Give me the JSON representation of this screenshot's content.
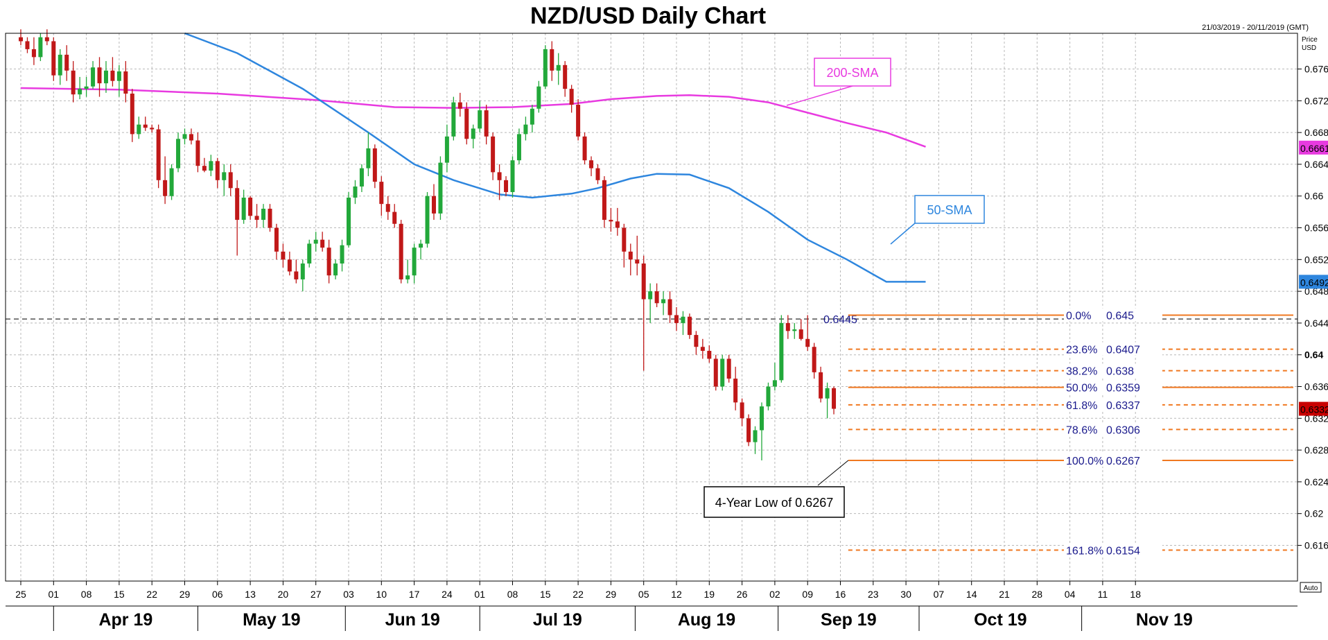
{
  "header": {
    "title": "NZD/USD Daily Chart",
    "date_range": "21/03/2019 - 20/11/2019 (GMT)",
    "price_unit_line1": "Price",
    "price_unit_line2": "USD",
    "auto_label": "Auto"
  },
  "colors": {
    "bull": "#22a83a",
    "bear": "#c01818",
    "sma200": "#e83ae0",
    "sma50": "#2e86de",
    "fib": "#f07820",
    "price_badge": "#c80000",
    "grid": "#b8b8b8"
  },
  "chart_data": {
    "type": "candlestick",
    "title": "NZD/USD Daily Chart",
    "ylabel": "Price USD",
    "ylim": [
      0.6115,
      0.6805
    ],
    "grid": true,
    "price_ticks": [
      "0.676",
      "0.672",
      "0.668",
      "0.664",
      "0.66",
      "0.656",
      "0.652",
      "0.648",
      "0.644",
      "0.64",
      "0.636",
      "0.632",
      "0.628",
      "0.624",
      "0.62",
      "0.616"
    ],
    "x_tick_labels": [
      "25",
      "01",
      "08",
      "15",
      "22",
      "29",
      "06",
      "13",
      "20",
      "27",
      "03",
      "10",
      "17",
      "24",
      "01",
      "08",
      "15",
      "22",
      "29",
      "05",
      "12",
      "19",
      "26",
      "02",
      "09",
      "16",
      "23",
      "30",
      "07",
      "14",
      "21",
      "28",
      "04",
      "11",
      "18"
    ],
    "months": [
      "Apr 19",
      "May 19",
      "Jun 19",
      "Jul 19",
      "Aug 19",
      "Sep 19",
      "Oct 19",
      "Nov 19"
    ],
    "candles": [
      {
        "o": 0.68,
        "h": 0.681,
        "l": 0.679,
        "c": 0.6795
      },
      {
        "o": 0.6795,
        "h": 0.68,
        "l": 0.678,
        "c": 0.6785
      },
      {
        "o": 0.6785,
        "h": 0.68,
        "l": 0.6765,
        "c": 0.6775
      },
      {
        "o": 0.6775,
        "h": 0.6805,
        "l": 0.677,
        "c": 0.68
      },
      {
        "o": 0.68,
        "h": 0.681,
        "l": 0.679,
        "c": 0.6795
      },
      {
        "o": 0.6795,
        "h": 0.68,
        "l": 0.6745,
        "c": 0.6752
      },
      {
        "o": 0.6752,
        "h": 0.6785,
        "l": 0.674,
        "c": 0.6778
      },
      {
        "o": 0.6778,
        "h": 0.679,
        "l": 0.6745,
        "c": 0.6758
      },
      {
        "o": 0.6758,
        "h": 0.677,
        "l": 0.6718,
        "c": 0.6728
      },
      {
        "o": 0.6728,
        "h": 0.675,
        "l": 0.6722,
        "c": 0.6735
      },
      {
        "o": 0.6735,
        "h": 0.675,
        "l": 0.6725,
        "c": 0.6738
      },
      {
        "o": 0.6738,
        "h": 0.677,
        "l": 0.6735,
        "c": 0.6762
      },
      {
        "o": 0.6762,
        "h": 0.6775,
        "l": 0.6725,
        "c": 0.6742
      },
      {
        "o": 0.6742,
        "h": 0.677,
        "l": 0.673,
        "c": 0.6758
      },
      {
        "o": 0.6758,
        "h": 0.6775,
        "l": 0.6738,
        "c": 0.6745
      },
      {
        "o": 0.6745,
        "h": 0.6765,
        "l": 0.6725,
        "c": 0.6757
      },
      {
        "o": 0.6757,
        "h": 0.677,
        "l": 0.6718,
        "c": 0.6729
      },
      {
        "o": 0.6729,
        "h": 0.6735,
        "l": 0.6668,
        "c": 0.6678
      },
      {
        "o": 0.6678,
        "h": 0.67,
        "l": 0.6672,
        "c": 0.669
      },
      {
        "o": 0.669,
        "h": 0.67,
        "l": 0.6682,
        "c": 0.6686
      },
      {
        "o": 0.6686,
        "h": 0.669,
        "l": 0.668,
        "c": 0.6684
      },
      {
        "o": 0.6684,
        "h": 0.669,
        "l": 0.661,
        "c": 0.662
      },
      {
        "o": 0.662,
        "h": 0.665,
        "l": 0.659,
        "c": 0.66
      },
      {
        "o": 0.66,
        "h": 0.664,
        "l": 0.6595,
        "c": 0.6635
      },
      {
        "o": 0.6635,
        "h": 0.668,
        "l": 0.663,
        "c": 0.6672
      },
      {
        "o": 0.6672,
        "h": 0.6685,
        "l": 0.6665,
        "c": 0.6678
      },
      {
        "o": 0.6678,
        "h": 0.6685,
        "l": 0.6665,
        "c": 0.667
      },
      {
        "o": 0.667,
        "h": 0.668,
        "l": 0.663,
        "c": 0.6638
      },
      {
        "o": 0.6638,
        "h": 0.6648,
        "l": 0.663,
        "c": 0.6632
      },
      {
        "o": 0.6632,
        "h": 0.6652,
        "l": 0.6625,
        "c": 0.6644
      },
      {
        "o": 0.6644,
        "h": 0.6648,
        "l": 0.661,
        "c": 0.662
      },
      {
        "o": 0.662,
        "h": 0.664,
        "l": 0.66,
        "c": 0.663
      },
      {
        "o": 0.663,
        "h": 0.664,
        "l": 0.66,
        "c": 0.661
      },
      {
        "o": 0.661,
        "h": 0.662,
        "l": 0.6525,
        "c": 0.657
      },
      {
        "o": 0.657,
        "h": 0.6608,
        "l": 0.6565,
        "c": 0.6598
      },
      {
        "o": 0.6598,
        "h": 0.66,
        "l": 0.657,
        "c": 0.6575
      },
      {
        "o": 0.6575,
        "h": 0.659,
        "l": 0.656,
        "c": 0.657
      },
      {
        "o": 0.657,
        "h": 0.659,
        "l": 0.656,
        "c": 0.6584
      },
      {
        "o": 0.6584,
        "h": 0.659,
        "l": 0.6555,
        "c": 0.656
      },
      {
        "o": 0.656,
        "h": 0.6565,
        "l": 0.652,
        "c": 0.653
      },
      {
        "o": 0.653,
        "h": 0.654,
        "l": 0.651,
        "c": 0.652
      },
      {
        "o": 0.652,
        "h": 0.653,
        "l": 0.65,
        "c": 0.6505
      },
      {
        "o": 0.6505,
        "h": 0.652,
        "l": 0.649,
        "c": 0.6495
      },
      {
        "o": 0.6495,
        "h": 0.652,
        "l": 0.648,
        "c": 0.6515
      },
      {
        "o": 0.6515,
        "h": 0.6545,
        "l": 0.651,
        "c": 0.654
      },
      {
        "o": 0.654,
        "h": 0.6555,
        "l": 0.653,
        "c": 0.6545
      },
      {
        "o": 0.6545,
        "h": 0.6555,
        "l": 0.653,
        "c": 0.6535
      },
      {
        "o": 0.6535,
        "h": 0.6545,
        "l": 0.649,
        "c": 0.65
      },
      {
        "o": 0.65,
        "h": 0.652,
        "l": 0.6495,
        "c": 0.6515
      },
      {
        "o": 0.6515,
        "h": 0.6545,
        "l": 0.6505,
        "c": 0.6538
      },
      {
        "o": 0.6538,
        "h": 0.6605,
        "l": 0.6535,
        "c": 0.6598
      },
      {
        "o": 0.6598,
        "h": 0.662,
        "l": 0.659,
        "c": 0.6612
      },
      {
        "o": 0.6612,
        "h": 0.664,
        "l": 0.6605,
        "c": 0.6635
      },
      {
        "o": 0.6635,
        "h": 0.668,
        "l": 0.6625,
        "c": 0.666
      },
      {
        "o": 0.666,
        "h": 0.6665,
        "l": 0.661,
        "c": 0.6618
      },
      {
        "o": 0.6618,
        "h": 0.6625,
        "l": 0.6575,
        "c": 0.659
      },
      {
        "o": 0.659,
        "h": 0.66,
        "l": 0.657,
        "c": 0.658
      },
      {
        "o": 0.658,
        "h": 0.659,
        "l": 0.656,
        "c": 0.6565
      },
      {
        "o": 0.6565,
        "h": 0.657,
        "l": 0.649,
        "c": 0.6495
      },
      {
        "o": 0.6495,
        "h": 0.652,
        "l": 0.649,
        "c": 0.65
      },
      {
        "o": 0.65,
        "h": 0.654,
        "l": 0.649,
        "c": 0.6535
      },
      {
        "o": 0.6535,
        "h": 0.6545,
        "l": 0.652,
        "c": 0.654
      },
      {
        "o": 0.654,
        "h": 0.6605,
        "l": 0.6535,
        "c": 0.66
      },
      {
        "o": 0.66,
        "h": 0.6615,
        "l": 0.657,
        "c": 0.6578
      },
      {
        "o": 0.6578,
        "h": 0.665,
        "l": 0.657,
        "c": 0.6642
      },
      {
        "o": 0.6642,
        "h": 0.669,
        "l": 0.663,
        "c": 0.6675
      },
      {
        "o": 0.6675,
        "h": 0.6725,
        "l": 0.667,
        "c": 0.6718
      },
      {
        "o": 0.6718,
        "h": 0.673,
        "l": 0.67,
        "c": 0.671
      },
      {
        "o": 0.671,
        "h": 0.6718,
        "l": 0.6665,
        "c": 0.6672
      },
      {
        "o": 0.6672,
        "h": 0.669,
        "l": 0.666,
        "c": 0.6685
      },
      {
        "o": 0.6685,
        "h": 0.672,
        "l": 0.668,
        "c": 0.6708
      },
      {
        "o": 0.6708,
        "h": 0.6715,
        "l": 0.6665,
        "c": 0.6675
      },
      {
        "o": 0.6675,
        "h": 0.668,
        "l": 0.662,
        "c": 0.663
      },
      {
        "o": 0.663,
        "h": 0.664,
        "l": 0.6595,
        "c": 0.662
      },
      {
        "o": 0.662,
        "h": 0.6625,
        "l": 0.66,
        "c": 0.6605
      },
      {
        "o": 0.6605,
        "h": 0.665,
        "l": 0.6598,
        "c": 0.6645
      },
      {
        "o": 0.6645,
        "h": 0.6685,
        "l": 0.664,
        "c": 0.6678
      },
      {
        "o": 0.6678,
        "h": 0.67,
        "l": 0.667,
        "c": 0.669
      },
      {
        "o": 0.669,
        "h": 0.6715,
        "l": 0.668,
        "c": 0.671
      },
      {
        "o": 0.671,
        "h": 0.6745,
        "l": 0.6705,
        "c": 0.6738
      },
      {
        "o": 0.6738,
        "h": 0.679,
        "l": 0.6735,
        "c": 0.6785
      },
      {
        "o": 0.6785,
        "h": 0.6795,
        "l": 0.6745,
        "c": 0.6758
      },
      {
        "o": 0.6758,
        "h": 0.678,
        "l": 0.674,
        "c": 0.6765
      },
      {
        "o": 0.6765,
        "h": 0.677,
        "l": 0.6725,
        "c": 0.6735
      },
      {
        "o": 0.6735,
        "h": 0.674,
        "l": 0.6705,
        "c": 0.6715
      },
      {
        "o": 0.6715,
        "h": 0.6722,
        "l": 0.667,
        "c": 0.6675
      },
      {
        "o": 0.6675,
        "h": 0.668,
        "l": 0.664,
        "c": 0.6645
      },
      {
        "o": 0.6645,
        "h": 0.665,
        "l": 0.6625,
        "c": 0.6635
      },
      {
        "o": 0.6635,
        "h": 0.664,
        "l": 0.6615,
        "c": 0.662
      },
      {
        "o": 0.662,
        "h": 0.6625,
        "l": 0.656,
        "c": 0.657
      },
      {
        "o": 0.657,
        "h": 0.6585,
        "l": 0.6555,
        "c": 0.6568
      },
      {
        "o": 0.6568,
        "h": 0.6585,
        "l": 0.655,
        "c": 0.656
      },
      {
        "o": 0.656,
        "h": 0.6565,
        "l": 0.651,
        "c": 0.653
      },
      {
        "o": 0.653,
        "h": 0.654,
        "l": 0.65,
        "c": 0.652
      },
      {
        "o": 0.652,
        "h": 0.655,
        "l": 0.65,
        "c": 0.6515
      },
      {
        "o": 0.6515,
        "h": 0.6525,
        "l": 0.638,
        "c": 0.647
      },
      {
        "o": 0.647,
        "h": 0.649,
        "l": 0.644,
        "c": 0.648
      },
      {
        "o": 0.648,
        "h": 0.649,
        "l": 0.646,
        "c": 0.6465
      },
      {
        "o": 0.6465,
        "h": 0.648,
        "l": 0.645,
        "c": 0.647
      },
      {
        "o": 0.647,
        "h": 0.648,
        "l": 0.644,
        "c": 0.645
      },
      {
        "o": 0.645,
        "h": 0.646,
        "l": 0.643,
        "c": 0.644
      },
      {
        "o": 0.644,
        "h": 0.6455,
        "l": 0.6425,
        "c": 0.6448
      },
      {
        "o": 0.6448,
        "h": 0.6452,
        "l": 0.642,
        "c": 0.6425
      },
      {
        "o": 0.6425,
        "h": 0.643,
        "l": 0.64,
        "c": 0.641
      },
      {
        "o": 0.641,
        "h": 0.642,
        "l": 0.6395,
        "c": 0.6405
      },
      {
        "o": 0.6405,
        "h": 0.6412,
        "l": 0.639,
        "c": 0.6395
      },
      {
        "o": 0.6395,
        "h": 0.64,
        "l": 0.6355,
        "c": 0.636
      },
      {
        "o": 0.636,
        "h": 0.64,
        "l": 0.6355,
        "c": 0.6395
      },
      {
        "o": 0.6395,
        "h": 0.64,
        "l": 0.6365,
        "c": 0.637
      },
      {
        "o": 0.637,
        "h": 0.6385,
        "l": 0.633,
        "c": 0.634
      },
      {
        "o": 0.634,
        "h": 0.6345,
        "l": 0.631,
        "c": 0.632
      },
      {
        "o": 0.632,
        "h": 0.6325,
        "l": 0.6285,
        "c": 0.629
      },
      {
        "o": 0.629,
        "h": 0.631,
        "l": 0.6275,
        "c": 0.6305
      },
      {
        "o": 0.6305,
        "h": 0.634,
        "l": 0.6267,
        "c": 0.6335
      },
      {
        "o": 0.6335,
        "h": 0.6365,
        "l": 0.633,
        "c": 0.636
      },
      {
        "o": 0.636,
        "h": 0.639,
        "l": 0.6355,
        "c": 0.6368
      },
      {
        "o": 0.6368,
        "h": 0.645,
        "l": 0.6365,
        "c": 0.644
      },
      {
        "o": 0.644,
        "h": 0.645,
        "l": 0.642,
        "c": 0.643
      },
      {
        "o": 0.643,
        "h": 0.644,
        "l": 0.642,
        "c": 0.6432
      },
      {
        "o": 0.6432,
        "h": 0.6445,
        "l": 0.6418,
        "c": 0.642
      },
      {
        "o": 0.642,
        "h": 0.645,
        "l": 0.6405,
        "c": 0.641
      },
      {
        "o": 0.641,
        "h": 0.6415,
        "l": 0.637,
        "c": 0.6378
      },
      {
        "o": 0.6378,
        "h": 0.6385,
        "l": 0.634,
        "c": 0.6345
      },
      {
        "o": 0.6345,
        "h": 0.6365,
        "l": 0.632,
        "c": 0.6358
      },
      {
        "o": 0.6358,
        "h": 0.636,
        "l": 0.6325,
        "c": 0.6332
      }
    ],
    "sma200": [
      [
        0,
        0.6736
      ],
      [
        15,
        0.6734
      ],
      [
        30,
        0.6729
      ],
      [
        45,
        0.6721
      ],
      [
        57,
        0.6712
      ],
      [
        66,
        0.6711
      ],
      [
        75,
        0.6712
      ],
      [
        84,
        0.6716
      ],
      [
        90,
        0.6722
      ],
      [
        97,
        0.6726
      ],
      [
        102,
        0.6727
      ],
      [
        108,
        0.6725
      ],
      [
        114,
        0.6718
      ],
      [
        120,
        0.6705
      ],
      [
        126,
        0.6692
      ],
      [
        132,
        0.668
      ],
      [
        138,
        0.6662
      ]
    ],
    "sma50": [
      [
        25,
        0.6805
      ],
      [
        33,
        0.678
      ],
      [
        43,
        0.6735
      ],
      [
        53,
        0.668
      ],
      [
        60,
        0.664
      ],
      [
        66,
        0.662
      ],
      [
        73,
        0.6602
      ],
      [
        78,
        0.6598
      ],
      [
        84,
        0.6603
      ],
      [
        88,
        0.661
      ],
      [
        93,
        0.6622
      ],
      [
        97,
        0.6628
      ],
      [
        102,
        0.6627
      ],
      [
        108,
        0.661
      ],
      [
        114,
        0.658
      ],
      [
        120,
        0.6545
      ],
      [
        126,
        0.652
      ],
      [
        132,
        0.6492
      ],
      [
        138,
        0.6492
      ]
    ],
    "sma200_label": "200-SMA",
    "sma50_label": "50-SMA",
    "sma200_last_value": "0.6661",
    "sma50_last_value": "0.6492",
    "last_price": "0.6332",
    "resistance_level": 0.6445,
    "resistance_label": "0.6445",
    "fibonacci_levels": [
      {
        "pct": "0.0%",
        "value": "0.645",
        "price": 0.645,
        "style": "solid"
      },
      {
        "pct": "23.6%",
        "value": "0.6407",
        "price": 0.6407,
        "style": "dashed"
      },
      {
        "pct": "38.2%",
        "value": "0.638",
        "price": 0.638,
        "style": "dashed"
      },
      {
        "pct": "50.0%",
        "value": "0.6359",
        "price": 0.6359,
        "style": "solid"
      },
      {
        "pct": "61.8%",
        "value": "0.6337",
        "price": 0.6337,
        "style": "dashed"
      },
      {
        "pct": "78.6%",
        "value": "0.6306",
        "price": 0.6306,
        "style": "dashed"
      },
      {
        "pct": "100.0%",
        "value": "0.6267",
        "price": 0.6267,
        "style": "solid"
      },
      {
        "pct": "161.8%",
        "value": "0.6154",
        "price": 0.6154,
        "style": "dashed"
      }
    ],
    "annotation": "4-Year Low of 0.6267"
  }
}
